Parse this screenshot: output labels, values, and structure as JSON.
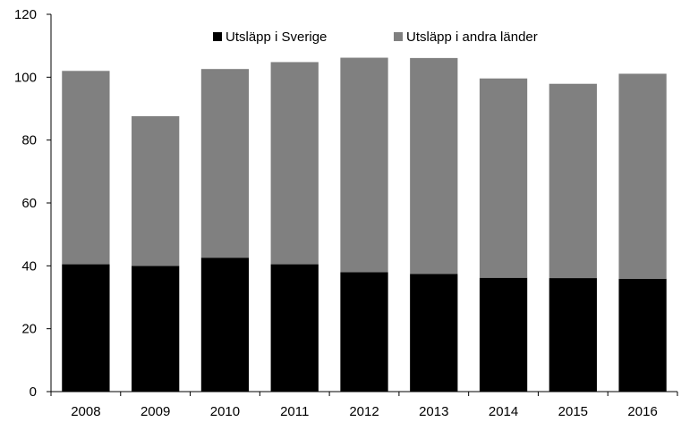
{
  "chart_data": {
    "type": "bar",
    "stacked": true,
    "title": "",
    "xlabel": "",
    "ylabel": "",
    "categories": [
      "2008",
      "2009",
      "2010",
      "2011",
      "2012",
      "2013",
      "2014",
      "2015",
      "2016"
    ],
    "series": [
      {
        "name": "Utsläpp i Sverige",
        "color": "#000000",
        "values": [
          40.5,
          40.0,
          42.6,
          40.5,
          38.0,
          37.4,
          36.2,
          36.1,
          35.9
        ]
      },
      {
        "name": "Utsläpp i andra länder",
        "color": "#808080",
        "values": [
          61.5,
          47.6,
          60.0,
          64.3,
          68.2,
          68.7,
          63.4,
          61.8,
          65.2
        ]
      }
    ],
    "ylim": [
      0,
      120
    ],
    "yticks": [
      0,
      20,
      40,
      60,
      80,
      100,
      120
    ],
    "grid": false,
    "legend_position": "top-center"
  }
}
